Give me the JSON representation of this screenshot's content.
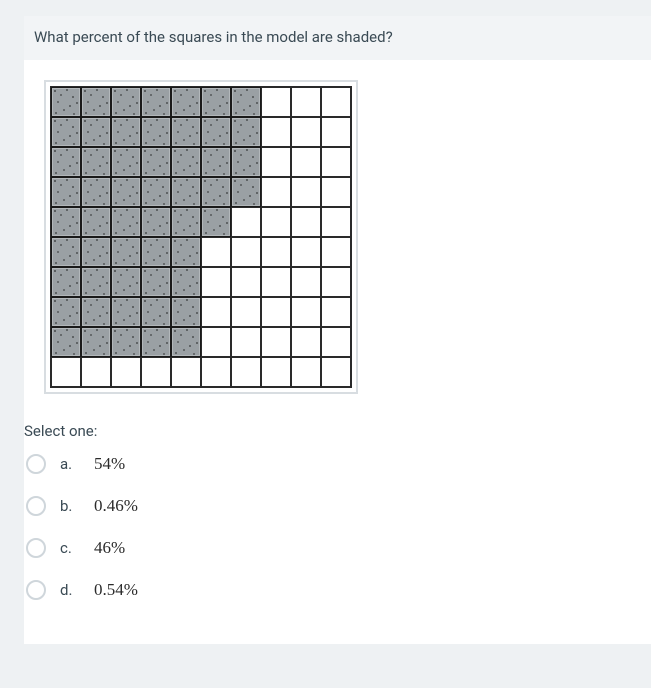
{
  "question": {
    "prompt": "What percent of the squares in the model are shaded?",
    "select_label": "Select one:"
  },
  "grid": {
    "rows": 10,
    "cols": 10,
    "shaded_color": "#9aa0a4",
    "unshaded_color": "#ffffff",
    "border_color": "#2a2a2a",
    "shaded_cells_per_row": [
      7,
      7,
      7,
      7,
      6,
      5,
      5,
      5,
      5,
      0
    ]
  },
  "options": [
    {
      "letter": "a.",
      "value": "54%"
    },
    {
      "letter": "b.",
      "value": "0.46%"
    },
    {
      "letter": "c.",
      "value": "46%"
    },
    {
      "letter": "d.",
      "value": "0.54%"
    }
  ],
  "colors": {
    "page_bg": "#eef1f3",
    "card_bg": "#ffffff",
    "header_bg": "#f2f4f6",
    "text": "#3a4a54",
    "radio_border": "#cfd6db"
  }
}
